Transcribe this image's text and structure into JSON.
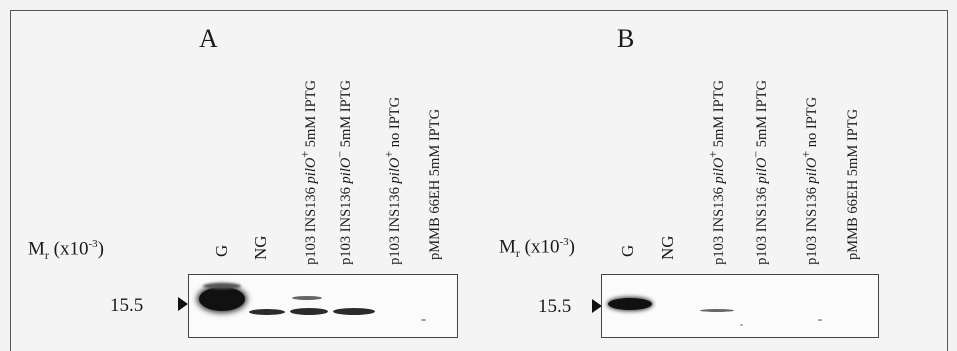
{
  "panels": [
    {
      "letter": "A",
      "mr_label": {
        "m": "M",
        "sub": "r",
        "open": " (x10",
        "sup": "-3",
        "close": ")"
      },
      "lanes": [
        "G",
        "NG",
        "p103 INS136 ",
        "p103 INS136 ",
        "p103 INS136 ",
        "pMMB 66EH 5mM IPTG"
      ],
      "lane_suffix": [
        null,
        null,
        {
          "gene": "pilO",
          "sup": "+",
          "rest": " 5mM IPTG"
        },
        {
          "gene": "pilO",
          "sup": "−",
          "rest": " 5mM IPTG"
        },
        {
          "gene": "pilO",
          "sup": "+",
          "rest": " no IPTG"
        },
        null
      ],
      "marker": "15.5"
    },
    {
      "letter": "B",
      "mr_label": {
        "m": "M",
        "sub": "r",
        "open": " (x10",
        "sup": "-3",
        "close": ")"
      },
      "lanes": [
        "G",
        "NG",
        "p103 INS136 ",
        "p103 INS136 ",
        "p103 INS136 ",
        "pMMB 66EH 5mM IPTG"
      ],
      "lane_suffix": [
        null,
        null,
        {
          "gene": "pilO",
          "sup": "+",
          "rest": " 5mM IPTG"
        },
        {
          "gene": "pilO",
          "sup": "−",
          "rest": " 5mM IPTG"
        },
        {
          "gene": "pilO",
          "sup": "+",
          "rest": " no IPTG"
        },
        null
      ],
      "marker": "15.5"
    }
  ]
}
